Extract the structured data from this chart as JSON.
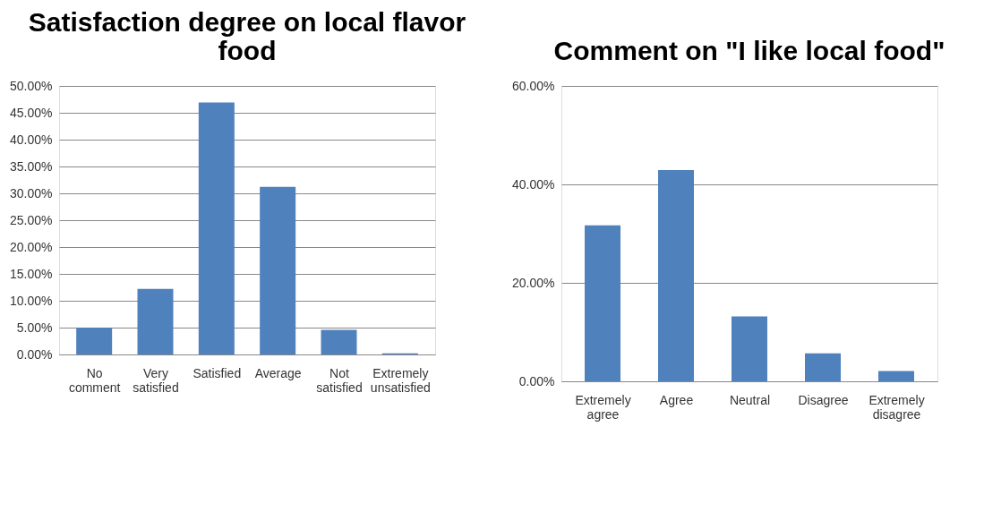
{
  "chart_data": [
    {
      "type": "bar",
      "title": "Satisfaction degree on local flavor food",
      "categories": [
        "No comment",
        "Very satisfied",
        "Satisfied",
        "Average",
        "Not satisfied",
        "Extremely unsatisfied"
      ],
      "values": [
        5.0,
        12.2,
        46.9,
        31.2,
        4.6,
        0.2
      ],
      "color": "#4f81bd",
      "ylim": [
        0,
        50
      ],
      "yticks": [
        {
          "value": 0,
          "label": "0.00%"
        },
        {
          "value": 5,
          "label": "5.00%"
        },
        {
          "value": 10,
          "label": "10.00%"
        },
        {
          "value": 15,
          "label": "15.00%"
        },
        {
          "value": 20,
          "label": "20.00%"
        },
        {
          "value": 25,
          "label": "25.00%"
        },
        {
          "value": 30,
          "label": "30.00%"
        },
        {
          "value": 35,
          "label": "35.00%"
        },
        {
          "value": 40,
          "label": "40.00%"
        },
        {
          "value": 45,
          "label": "45.00%"
        },
        {
          "value": 50,
          "label": "50.00%"
        }
      ],
      "grid": "y"
    },
    {
      "type": "bar",
      "title": "Comment on \"I  like local food\"",
      "categories": [
        "Extremely agree",
        "Agree",
        "Neutral",
        "Disagree",
        "Extremely disagree"
      ],
      "values": [
        31.7,
        42.9,
        13.2,
        5.7,
        2.1
      ],
      "color": "#4f81bd",
      "ylim": [
        0,
        60
      ],
      "yticks": [
        {
          "value": 0,
          "label": "0.00%"
        },
        {
          "value": 20,
          "label": "20.00%"
        },
        {
          "value": 40,
          "label": "40.00%"
        },
        {
          "value": 60,
          "label": "60.00%"
        }
      ],
      "grid": "y"
    }
  ]
}
